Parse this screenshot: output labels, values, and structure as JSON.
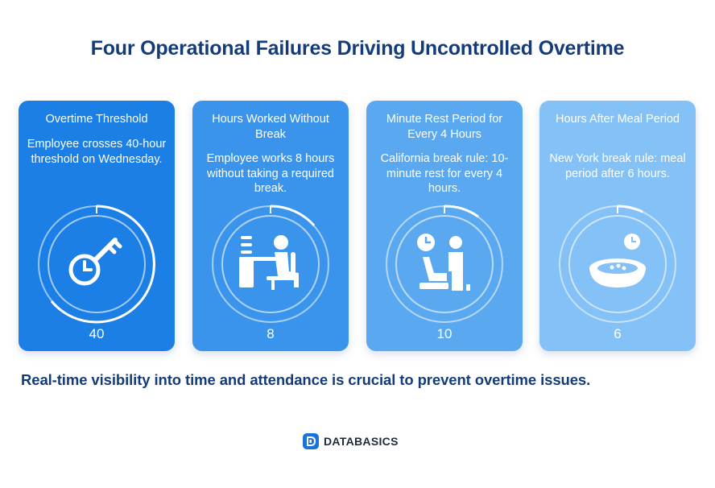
{
  "title": "Four Operational Failures Driving Uncontrolled Overtime",
  "cards": [
    {
      "heading": "Overtime Threshold",
      "description": "Employee crosses 40-hour threshold on Wednesday.",
      "value": "40",
      "icon": "key-clock-icon",
      "color": "#1b7fe6"
    },
    {
      "heading": "Hours Worked Without Break",
      "description": "Employee works 8 hours without taking a required break.",
      "value": "8",
      "icon": "desk-worker-icon",
      "color": "#3a94ec"
    },
    {
      "heading": "Minute Rest Period for Every 4 Hours",
      "description": "California break rule: 10-minute rest for every 4 hours.",
      "value": "10",
      "icon": "rest-break-icon",
      "color": "#5aa8f0"
    },
    {
      "heading": "Hours After Meal Period",
      "description": "New York break rule: meal period after 6 hours.",
      "value": "6",
      "icon": "meal-bowl-icon",
      "color": "#84c1f6"
    }
  ],
  "footer": "Real-time visibility into time and attendance is crucial to prevent overtime issues.",
  "brand": {
    "name": "DATABASICS",
    "icon": "databasics-logo-icon",
    "color": "#1a73d9"
  }
}
